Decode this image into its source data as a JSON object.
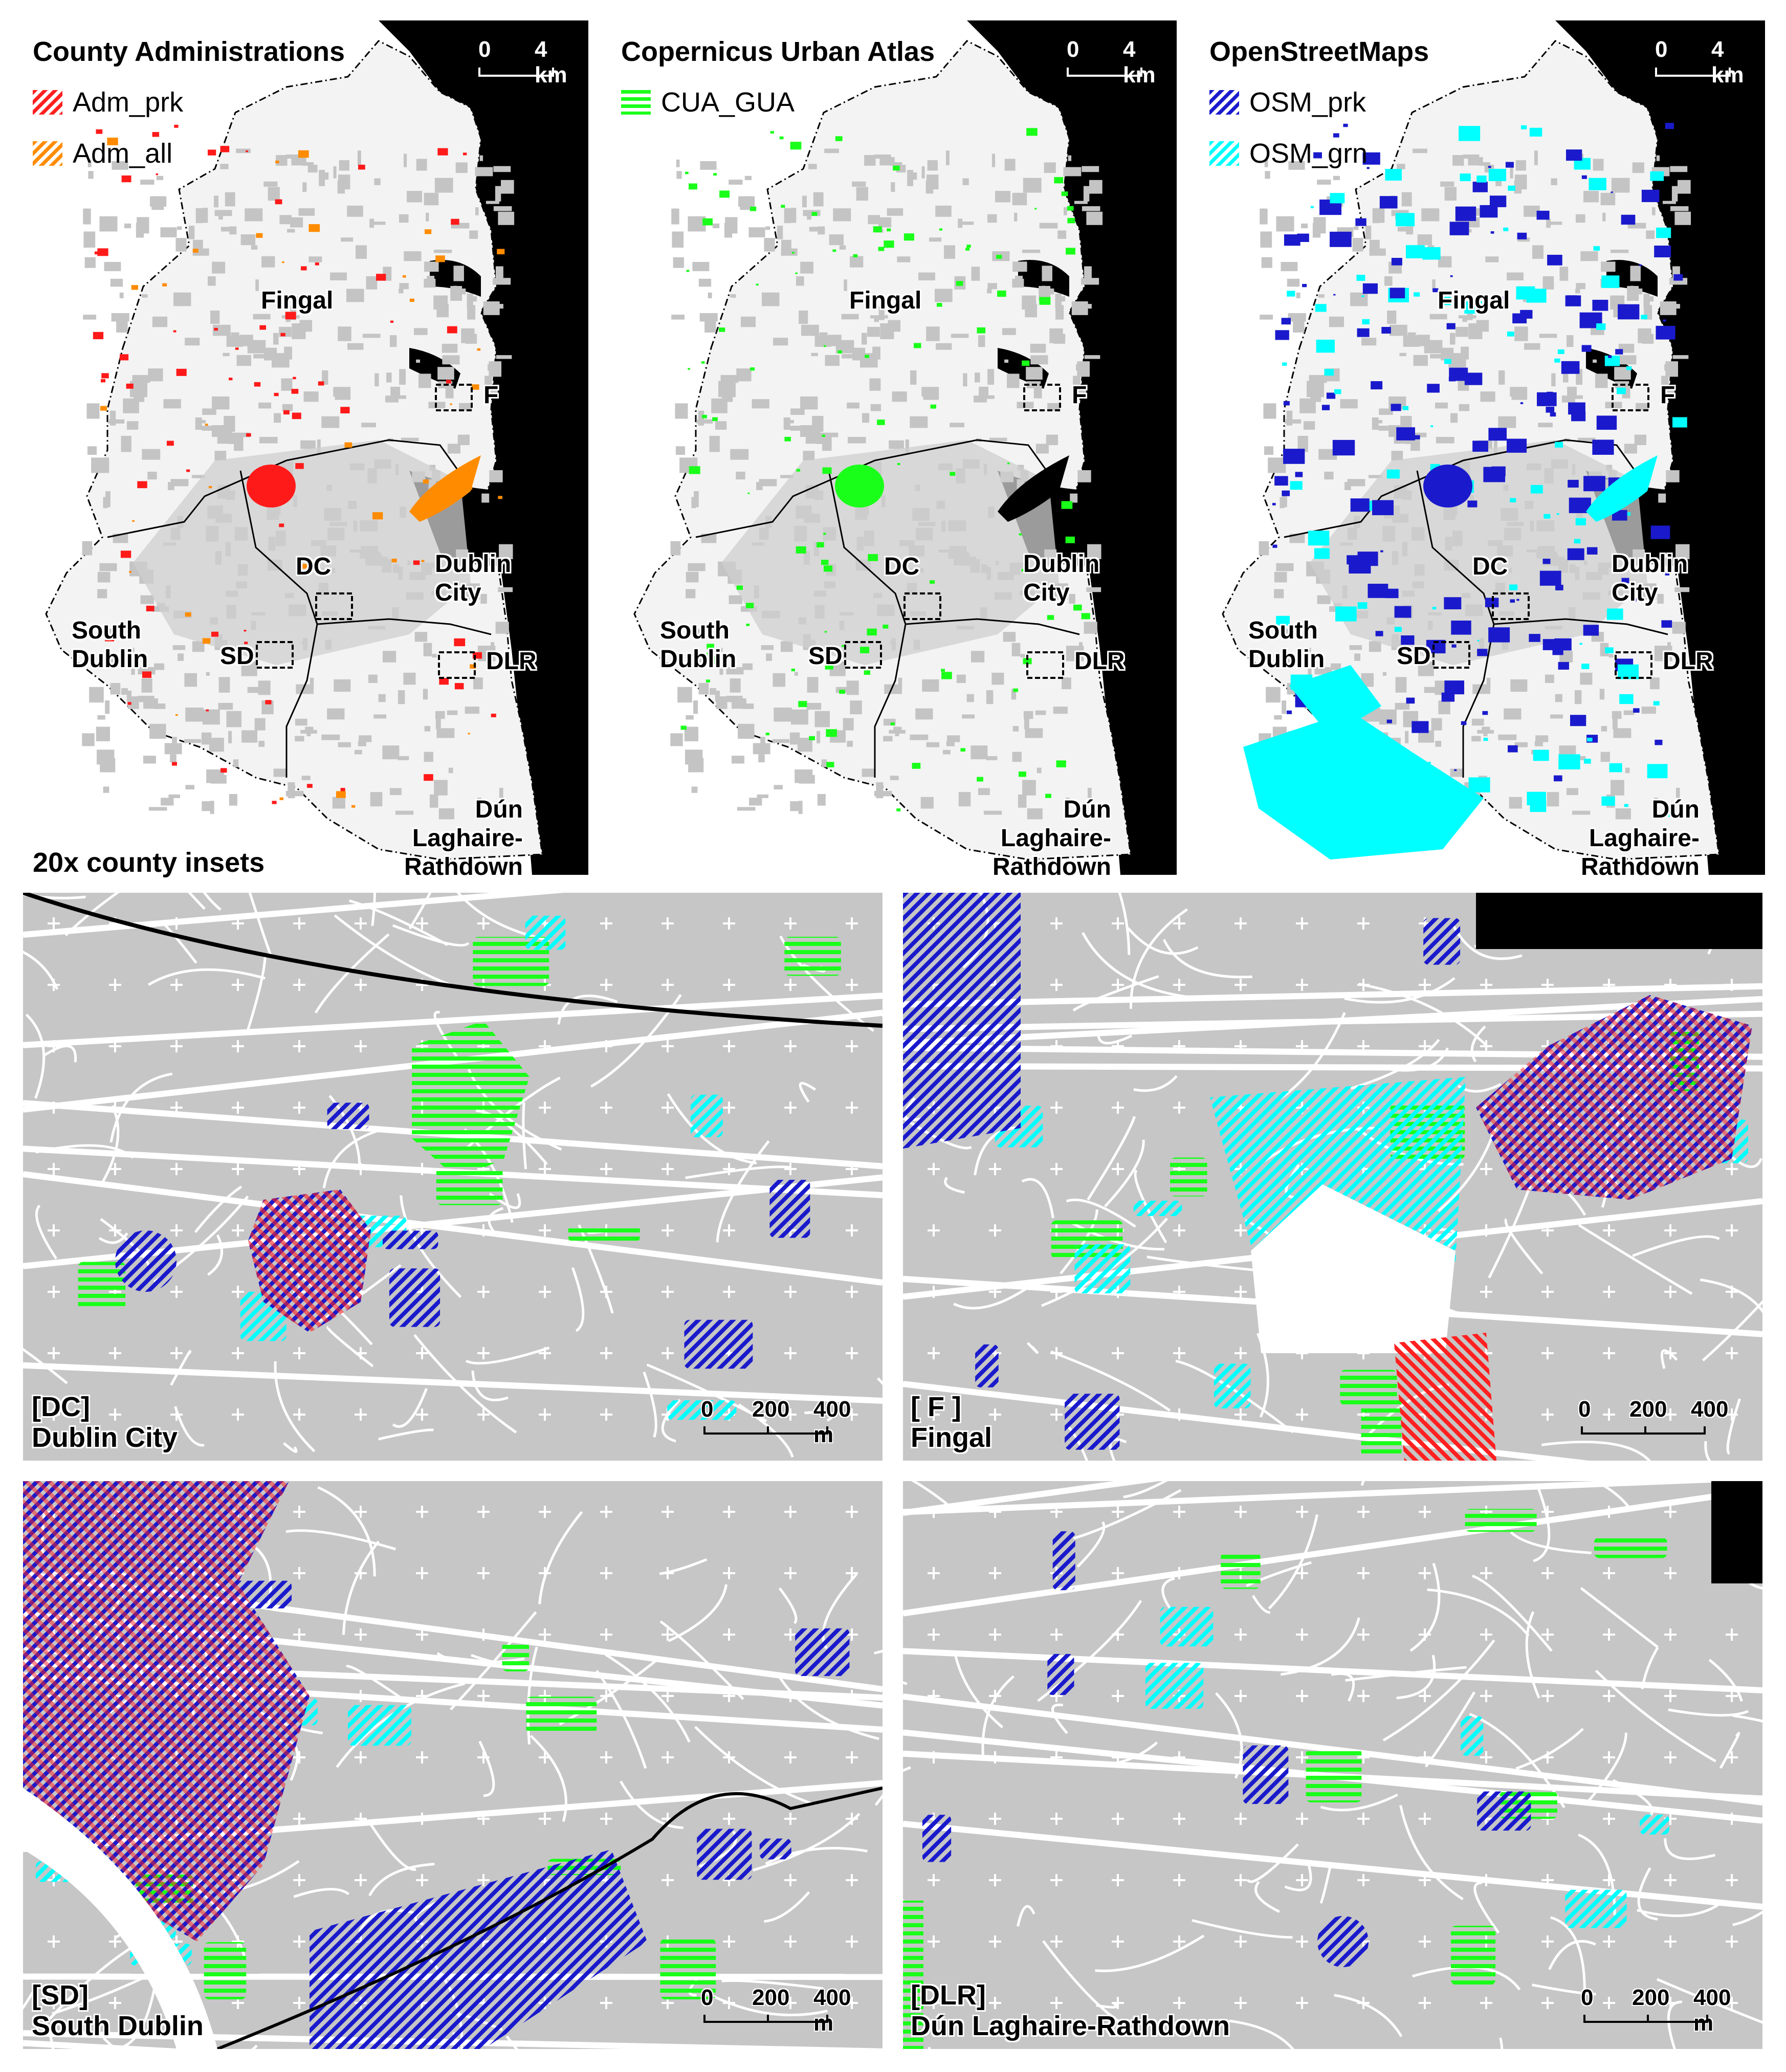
{
  "colors": {
    "adm_prk": "#ff1a1a",
    "adm_all": "#ff8c00",
    "cua_gua": "#1aff1a",
    "osm_prk": "#1a1acc",
    "osm_grn": "#00ffff",
    "urban": "#c6c6c6",
    "sea": "#000000",
    "land": "#f2f2f2"
  },
  "maps": [
    {
      "title": "County Administrations",
      "legend": [
        {
          "label": "Adm_prk",
          "color": "#ff2020",
          "pattern": "diag"
        },
        {
          "label": "Adm_all",
          "color": "#ff8c00",
          "pattern": "diag"
        }
      ],
      "accent": "#ff1a1a",
      "accent2": "#ff8c00"
    },
    {
      "title": "Copernicus Urban Atlas",
      "legend": [
        {
          "label": "CUA_GUA",
          "color": "#1aff1a",
          "pattern": "horiz"
        }
      ],
      "accent": "#1aff1a",
      "accent2": "#1aff1a"
    },
    {
      "title": "OpenStreetMaps",
      "legend": [
        {
          "label": "OSM_prk",
          "color": "#1a1acc",
          "pattern": "diag"
        },
        {
          "label": "OSM_grn",
          "color": "#00ffff",
          "pattern": "diag"
        }
      ],
      "accent": "#1a1acc",
      "accent2": "#00ffff"
    }
  ],
  "map_labels": {
    "fingal": "Fingal",
    "dublin_city": [
      "Dublin",
      "City"
    ],
    "south_dublin": [
      "South",
      "Dublin"
    ],
    "dlr": [
      "Dún Laghaire-",
      "Rathdown"
    ],
    "box_f": "F",
    "box_dc": "DC",
    "box_sd": "SD",
    "box_dlr": "DLR"
  },
  "map_scale": {
    "zero": "0",
    "max": "4 km"
  },
  "insets_title": "20x county insets",
  "insets": [
    {
      "code": "[DC]",
      "name": "Dublin City",
      "scale": [
        "0",
        "200",
        "400 m"
      ]
    },
    {
      "code": "[ F ]",
      "name": "Fingal",
      "scale": [
        "0",
        "200",
        "400"
      ]
    },
    {
      "code": "[SD]",
      "name": "South Dublin",
      "scale": [
        "0",
        "200",
        "400 m"
      ]
    },
    {
      "code": "[DLR]",
      "name": "Dún Laghaire-Rathdown",
      "scale": [
        "0",
        "200",
        "400 m"
      ]
    }
  ]
}
